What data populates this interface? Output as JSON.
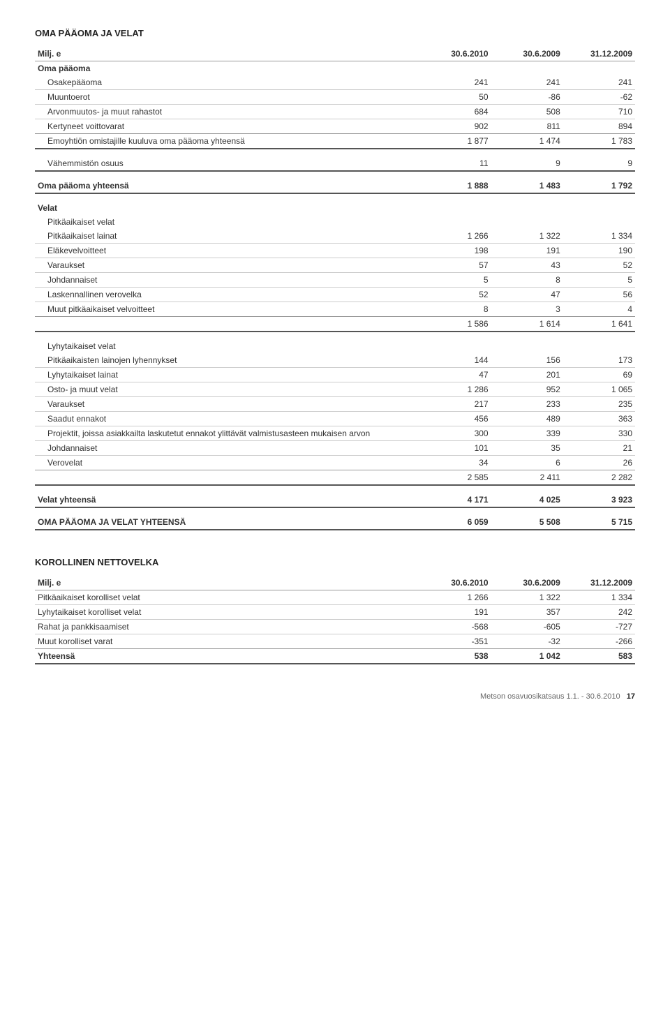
{
  "section_title": "OMA PÄÄOMA JA VELAT",
  "headers": {
    "c0": "Milj. e",
    "c1": "30.6.2010",
    "c2": "30.6.2009",
    "c3": "31.12.2009"
  },
  "oma_paaoma": {
    "label": "Oma pääoma",
    "rows": [
      {
        "label": "Osakepääoma",
        "c1": "241",
        "c2": "241",
        "c3": "241"
      },
      {
        "label": "Muuntoerot",
        "c1": "50",
        "c2": "-86",
        "c3": "-62"
      },
      {
        "label": "Arvonmuutos- ja muut rahastot",
        "c1": "684",
        "c2": "508",
        "c3": "710"
      },
      {
        "label": "Kertyneet voittovarat",
        "c1": "902",
        "c2": "811",
        "c3": "894"
      }
    ],
    "emoyhtio": {
      "label": "Emoyhtiön omistajille kuuluva oma pääoma yhteensä",
      "c1": "1 877",
      "c2": "1 474",
      "c3": "1 783"
    },
    "vahemmiston": {
      "label": "Vähemmistön osuus",
      "c1": "11",
      "c2": "9",
      "c3": "9"
    },
    "yhteensa": {
      "label": "Oma pääoma yhteensä",
      "c1": "1 888",
      "c2": "1 483",
      "c3": "1 792"
    }
  },
  "velat": {
    "label": "Velat",
    "pitka": {
      "label": "Pitkäaikaiset velat",
      "rows": [
        {
          "label": "Pitkäaikaiset lainat",
          "c1": "1 266",
          "c2": "1 322",
          "c3": "1 334"
        },
        {
          "label": "Eläkevelvoitteet",
          "c1": "198",
          "c2": "191",
          "c3": "190"
        },
        {
          "label": "Varaukset",
          "c1": "57",
          "c2": "43",
          "c3": "52"
        },
        {
          "label": "Johdannaiset",
          "c1": "5",
          "c2": "8",
          "c3": "5"
        },
        {
          "label": "Laskennallinen verovelka",
          "c1": "52",
          "c2": "47",
          "c3": "56"
        },
        {
          "label": "Muut pitkäaikaiset velvoitteet",
          "c1": "8",
          "c2": "3",
          "c3": "4"
        }
      ],
      "subtotal": {
        "c1": "1 586",
        "c2": "1 614",
        "c3": "1 641"
      }
    },
    "lyhyt": {
      "label": "Lyhytaikaiset velat",
      "rows": [
        {
          "label": "Pitkäaikaisten lainojen lyhennykset",
          "c1": "144",
          "c2": "156",
          "c3": "173"
        },
        {
          "label": "Lyhytaikaiset lainat",
          "c1": "47",
          "c2": "201",
          "c3": "69"
        },
        {
          "label": "Osto- ja muut velat",
          "c1": "1 286",
          "c2": "952",
          "c3": "1 065"
        },
        {
          "label": "Varaukset",
          "c1": "217",
          "c2": "233",
          "c3": "235"
        },
        {
          "label": "Saadut ennakot",
          "c1": "456",
          "c2": "489",
          "c3": "363"
        },
        {
          "label": "Projektit, joissa asiakkailta laskutetut ennakot ylittävät valmistusasteen mukaisen arvon",
          "c1": "300",
          "c2": "339",
          "c3": "330"
        },
        {
          "label": "Johdannaiset",
          "c1": "101",
          "c2": "35",
          "c3": "21"
        },
        {
          "label": "Verovelat",
          "c1": "34",
          "c2": "6",
          "c3": "26"
        }
      ],
      "subtotal": {
        "c1": "2 585",
        "c2": "2 411",
        "c3": "2 282"
      }
    },
    "yhteensa": {
      "label": "Velat yhteensä",
      "c1": "4 171",
      "c2": "4 025",
      "c3": "3 923"
    }
  },
  "grand": {
    "label": "OMA PÄÄOMA JA VELAT YHTEENSÄ",
    "c1": "6 059",
    "c2": "5 508",
    "c3": "5 715"
  },
  "netto": {
    "title": "KOROLLINEN NETTOVELKA",
    "headers": {
      "c0": "Milj. e",
      "c1": "30.6.2010",
      "c2": "30.6.2009",
      "c3": "31.12.2009"
    },
    "rows": [
      {
        "label": "Pitkäaikaiset korolliset velat",
        "c1": "1 266",
        "c2": "1 322",
        "c3": "1 334"
      },
      {
        "label": "Lyhytaikaiset korolliset velat",
        "c1": "191",
        "c2": "357",
        "c3": "242"
      },
      {
        "label": "Rahat ja pankkisaamiset",
        "c1": "-568",
        "c2": "-605",
        "c3": "-727"
      },
      {
        "label": "Muut korolliset varat",
        "c1": "-351",
        "c2": "-32",
        "c3": "-266"
      }
    ],
    "yhteensa": {
      "label": "Yhteensä",
      "c1": "538",
      "c2": "1 042",
      "c3": "583"
    }
  },
  "footer": {
    "text": "Metson osavuosikatsaus 1.1. - 30.6.2010",
    "page": "17"
  }
}
